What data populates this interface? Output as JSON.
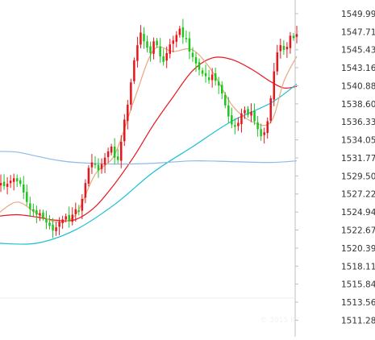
{
  "chart_data": {
    "type": "candlestick",
    "title": "",
    "xlabel": "",
    "ylabel": "",
    "ylim": [
      1510.0,
      1551.0
    ],
    "y_axis_position": "right",
    "y_ticks": [
      {
        "label": "1549.99",
        "value": 1549.99
      },
      {
        "label": "1547.71",
        "value": 1547.71
      },
      {
        "label": "1545.43",
        "value": 1545.43
      },
      {
        "label": "1543.16",
        "value": 1543.16
      },
      {
        "label": "1540.88",
        "value": 1540.88
      },
      {
        "label": "1538.60",
        "value": 1538.6
      },
      {
        "label": "1536.33",
        "value": 1536.33
      },
      {
        "label": "1534.05",
        "value": 1534.05
      },
      {
        "label": "1531.77",
        "value": 1531.77
      },
      {
        "label": "1529.50",
        "value": 1529.5
      },
      {
        "label": "1527.22",
        "value": 1527.22
      },
      {
        "label": "1524.94",
        "value": 1524.94
      },
      {
        "label": "1522.67",
        "value": 1522.67
      },
      {
        "label": "1520.39",
        "value": 1520.39
      },
      {
        "label": "1518.11",
        "value": 1518.11
      },
      {
        "label": "1515.84",
        "value": 1515.84
      },
      {
        "label": "1513.56",
        "value": 1513.56
      },
      {
        "label": "1511.28",
        "value": 1511.28
      }
    ],
    "grid": false,
    "up_color": "#e8151b",
    "down_color": "#21c321",
    "closes": [
      1528.3,
      1528.6,
      1528.2,
      1528.5,
      1528.9,
      1529.2,
      1528.8,
      1528.5,
      1527.4,
      1526.2,
      1525.3,
      1525.0,
      1524.6,
      1524.8,
      1524.2,
      1523.6,
      1523.2,
      1522.6,
      1523.0,
      1523.7,
      1524.0,
      1524.4,
      1523.8,
      1524.6,
      1525.3,
      1525.1,
      1526.6,
      1528.6,
      1530.5,
      1531.2,
      1530.9,
      1530.2,
      1531.0,
      1531.8,
      1532.6,
      1533.2,
      1531.8,
      1531.5,
      1533.8,
      1536.6,
      1538.5,
      1541.3,
      1544.1,
      1546.0,
      1547.6,
      1546.5,
      1545.7,
      1545.0,
      1546.5,
      1546.0,
      1544.6,
      1543.9,
      1545.0,
      1546.1,
      1546.6,
      1547.3,
      1548.1,
      1547.0,
      1546.8,
      1545.2,
      1544.5,
      1543.7,
      1542.9,
      1542.4,
      1542.1,
      1541.6,
      1542.3,
      1541.5,
      1540.9,
      1539.9,
      1538.4,
      1537.0,
      1536.0,
      1535.7,
      1536.2,
      1537.4,
      1537.8,
      1537.2,
      1537.6,
      1536.4,
      1535.4,
      1534.5,
      1535.0,
      1536.4,
      1539.3,
      1542.7,
      1545.1,
      1546.0,
      1545.4,
      1545.8,
      1547.2,
      1546.9,
      1547.4
    ],
    "series": [
      {
        "type": "line",
        "color": "#e8151b",
        "values": [
          [
            0,
            1524.4
          ],
          [
            6,
            1524.6
          ],
          [
            12,
            1524.3
          ],
          [
            18,
            1523.9
          ],
          [
            24,
            1524.0
          ],
          [
            30,
            1525.6
          ],
          [
            36,
            1528.5
          ],
          [
            42,
            1532.0
          ],
          [
            48,
            1536.0
          ],
          [
            54,
            1539.5
          ],
          [
            60,
            1542.8
          ],
          [
            66,
            1544.4
          ],
          [
            72,
            1544.2
          ],
          [
            78,
            1543.0
          ],
          [
            84,
            1541.4
          ],
          [
            88,
            1540.6
          ],
          [
            92,
            1540.8
          ]
        ]
      },
      {
        "type": "line",
        "color": "#17c0d6",
        "values": [
          [
            0,
            1521.0
          ],
          [
            12,
            1521.0
          ],
          [
            24,
            1522.7
          ],
          [
            36,
            1525.9
          ],
          [
            48,
            1530.0
          ],
          [
            60,
            1533.2
          ],
          [
            72,
            1536.4
          ],
          [
            84,
            1538.7
          ],
          [
            92,
            1541.1
          ]
        ]
      },
      {
        "type": "line",
        "color": "#8fb9e9",
        "values": [
          [
            0,
            1532.6
          ],
          [
            6,
            1532.5
          ],
          [
            12,
            1532.0
          ],
          [
            18,
            1531.5
          ],
          [
            24,
            1531.2
          ],
          [
            36,
            1531.0
          ],
          [
            48,
            1531.1
          ],
          [
            60,
            1531.4
          ],
          [
            72,
            1531.3
          ],
          [
            84,
            1531.2
          ],
          [
            92,
            1531.4
          ]
        ]
      },
      {
        "type": "line",
        "color": "#e8a87e",
        "values": [
          [
            0,
            1524.7
          ],
          [
            6,
            1526.2
          ],
          [
            12,
            1524.8
          ],
          [
            18,
            1523.7
          ],
          [
            24,
            1524.6
          ],
          [
            30,
            1529.7
          ],
          [
            36,
            1532.2
          ],
          [
            42,
            1539.1
          ],
          [
            48,
            1545.4
          ],
          [
            54,
            1545.2
          ],
          [
            60,
            1545.4
          ],
          [
            66,
            1542.7
          ],
          [
            72,
            1538.5
          ],
          [
            78,
            1536.4
          ],
          [
            84,
            1536.3
          ],
          [
            88,
            1541.4
          ],
          [
            92,
            1544.6
          ]
        ]
      }
    ]
  },
  "watermark": "© 2015 K"
}
